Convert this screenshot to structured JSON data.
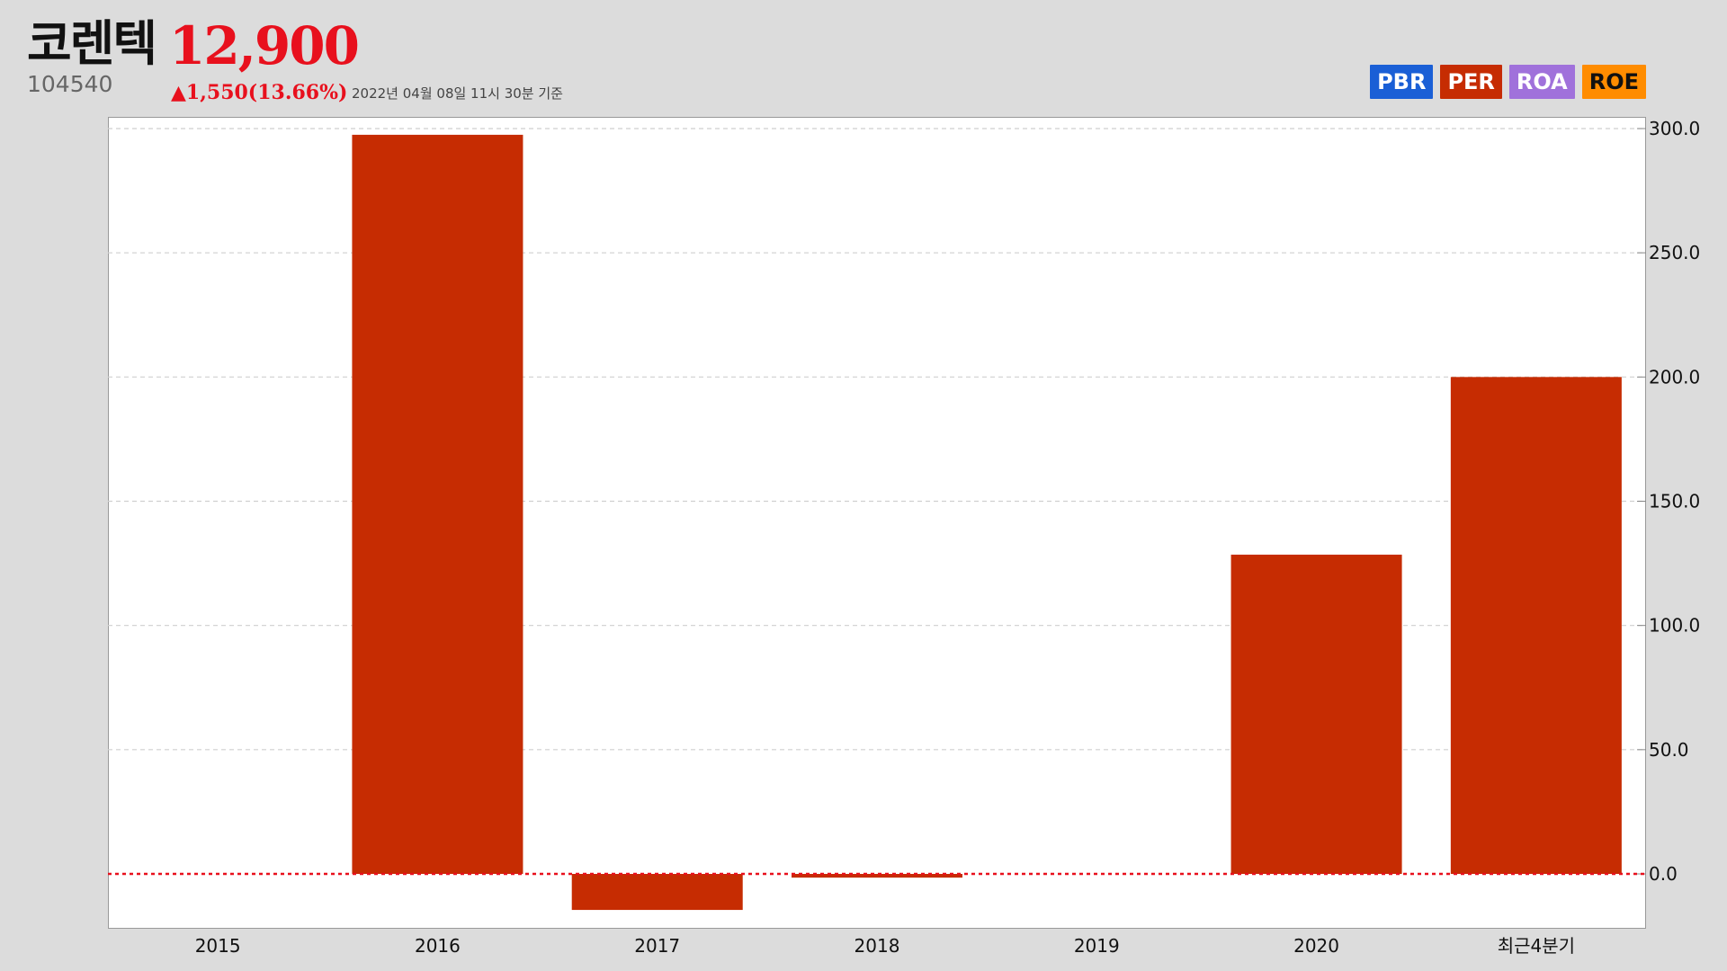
{
  "header": {
    "stock_name": "코렌텍",
    "price": "12,900",
    "code": "104540",
    "change": "▲1,550(13.66%)",
    "as_of": "2022년 04월 08일 11시 30분 기준"
  },
  "legend": {
    "items": [
      {
        "label": "PBR",
        "color": "#1a5fd6"
      },
      {
        "label": "PER",
        "color": "#c62c02"
      },
      {
        "label": "ROA",
        "color": "#a071db"
      },
      {
        "label": "ROE",
        "color": "#ff8c00"
      }
    ]
  },
  "chart_data": {
    "type": "bar",
    "categories": [
      "2015",
      "2016",
      "2017",
      "2018",
      "2019",
      "2020",
      "최근4분기"
    ],
    "values": [
      null,
      297.5,
      -14.5,
      -1.5,
      null,
      128.5,
      200.0
    ],
    "ylim": [
      -22,
      300
    ],
    "yticks": [
      0,
      50,
      100,
      150,
      200,
      250,
      300
    ],
    "ytick_labels": [
      "0.0",
      "50.0",
      "100.0",
      "150.0",
      "200.0",
      "250.0",
      "300.0"
    ],
    "y_axis_position": "right",
    "grid": true,
    "zero_line": "red-dotted",
    "bar_color": "#c62c02"
  }
}
